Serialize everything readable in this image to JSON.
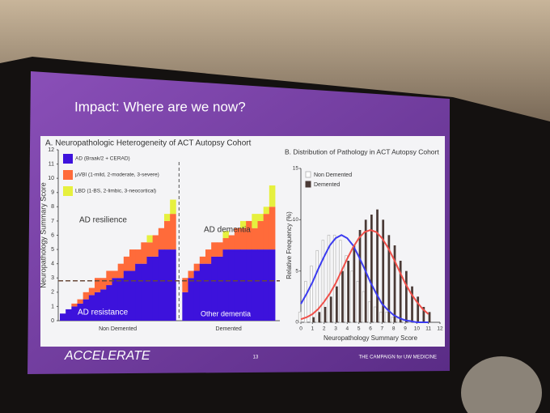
{
  "slide": {
    "title": "Impact: Where are we now?",
    "brand": "ACCELERATE",
    "page_number": "13",
    "campaign": "THE CAMPAIGN for UW MEDICINE"
  },
  "chart_data": [
    {
      "type": "stacked-bar",
      "title": "A. Neuropathologic Heterogeneity of ACT Autopsy Cohort",
      "ylabel": "Neuropathology Summary Score",
      "ylim": [
        0,
        12
      ],
      "yticks": [
        0,
        1,
        2,
        3,
        4,
        5,
        6,
        7,
        8,
        9,
        10,
        11,
        12
      ],
      "series": [
        {
          "name": "AD (Braak/2 + CERAD)",
          "color": "#3d12dc"
        },
        {
          "name": "µVBI (1-mild, 2-moderate, 3-severe)",
          "color": "#ff6b3a"
        },
        {
          "name": "LBD (1-BS, 2-limbic, 3-neocortical)",
          "color": "#e6f03e"
        }
      ],
      "groups": [
        {
          "label": "Non Demented",
          "values": [
            [
              0.5,
              0.8,
              1,
              1.2,
              1.5,
              1.8,
              2,
              2.2,
              2.5,
              3,
              3,
              3.5,
              3.5,
              4,
              4,
              4.5,
              4.5,
              5,
              5,
              5
            ],
            [
              0,
              0,
              0.2,
              0.3,
              0.5,
              0.5,
              1,
              0.8,
              1,
              0.5,
              1,
              1,
              1.5,
              1,
              1.5,
              1,
              1.5,
              1.5,
              2,
              2.5
            ],
            [
              0,
              0,
              0,
              0,
              0,
              0,
              0,
              0,
              0,
              0,
              0,
              0,
              0,
              0,
              0,
              0.5,
              0,
              0,
              0.5,
              1
            ]
          ]
        },
        {
          "label": "Demented",
          "values": [
            [
              2,
              3,
              3.5,
              4,
              4,
              4.5,
              4.5,
              5,
              5,
              5,
              5,
              5,
              5,
              5,
              5,
              5
            ],
            [
              1,
              0.5,
              0.5,
              0.5,
              1,
              1,
              1,
              0.8,
              1,
              1.5,
              1.5,
              2,
              1.5,
              2,
              2.5,
              3
            ],
            [
              0,
              0,
              0,
              0,
              0,
              0,
              0,
              0.5,
              0,
              0,
              0.5,
              0,
              1,
              0.5,
              0.5,
              1.5
            ]
          ]
        }
      ],
      "threshold": 2.8,
      "annotations": [
        "AD resilience",
        "AD dementia",
        "AD resistance",
        "Other dementia"
      ]
    },
    {
      "type": "histogram-fit",
      "title": "B. Distribution of Pathology in ACT Autopsy Cohort",
      "xlabel": "Neuropathology Summary Score",
      "ylabel": "Relative Frequency (%)",
      "xlim": [
        0,
        12
      ],
      "xticks": [
        0,
        1,
        2,
        3,
        4,
        5,
        6,
        7,
        8,
        9,
        10,
        11,
        12
      ],
      "ylim": [
        0,
        15
      ],
      "yticks": [
        0,
        5,
        10,
        15
      ],
      "x": [
        0,
        0.5,
        1,
        1.5,
        2,
        2.5,
        3,
        3.5,
        4,
        4.5,
        5,
        5.5,
        6,
        6.5,
        7,
        7.5,
        8,
        8.5,
        9,
        9.5,
        10,
        10.5,
        11
      ],
      "series": [
        {
          "name": "Non Demented",
          "color": "#bdbdbd",
          "fit_color": "#3b3bf0",
          "values": [
            1,
            4,
            5.5,
            7,
            8,
            8.5,
            8.5,
            8,
            6.5,
            5,
            4,
            3,
            2,
            1.5,
            1,
            1,
            0.5,
            0.5,
            0.3,
            0.2,
            0,
            0,
            0
          ],
          "fit": [
            1.8,
            2.8,
            3.9,
            5.2,
            6.4,
            7.5,
            8.2,
            8.5,
            8.2,
            7.5,
            6.4,
            5.2,
            3.9,
            2.8,
            1.8,
            1.2,
            0.7,
            0.4,
            0.2,
            0.1,
            0,
            0,
            0
          ]
        },
        {
          "name": "Demented",
          "color": "#4a3a36",
          "fit_color": "#f0504a",
          "values": [
            0,
            0,
            0.5,
            1,
            1.5,
            2.5,
            3.5,
            5,
            6,
            7.5,
            9,
            10,
            10.5,
            11,
            10,
            8.5,
            7.5,
            6,
            5,
            3.5,
            2.5,
            1.5,
            1
          ],
          "fit": [
            0.3,
            0.5,
            0.8,
            1.3,
            2,
            2.8,
            3.8,
            5,
            6.2,
            7.3,
            8.2,
            8.8,
            9,
            8.8,
            8.2,
            7.3,
            6.2,
            5,
            3.8,
            2.8,
            2,
            1.3,
            0.8
          ]
        }
      ]
    }
  ]
}
